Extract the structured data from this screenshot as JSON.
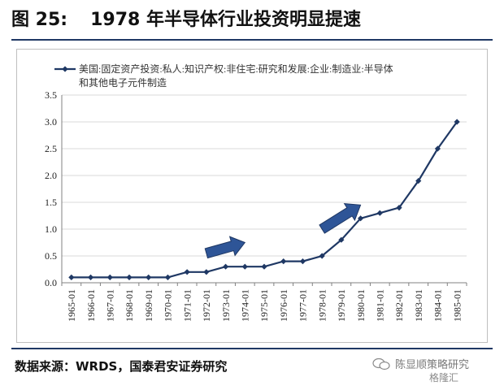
{
  "figure": {
    "number": "图 25:",
    "title": "1978 年半导体行业投资明显提速"
  },
  "source": "数据来源：WRDS，国泰君安证券研究",
  "watermark": {
    "author": "陈显顺策略研究",
    "brand": "格隆汇"
  },
  "colors": {
    "series": "#1f3864",
    "arrow": "#2e5597",
    "grid": "#d9d9d9",
    "rule": "#1f3864"
  },
  "chart_data": {
    "type": "line",
    "title": "",
    "xlabel": "",
    "ylabel": "",
    "ylim": [
      0,
      3.5
    ],
    "yticks": [
      "0.0",
      "0.5",
      "1.0",
      "1.5",
      "2.0",
      "2.5",
      "3.0",
      "3.5"
    ],
    "grid": "horizontal",
    "legend_position": "top",
    "x": [
      "1965-01",
      "1966-01",
      "1967-01",
      "1968-01",
      "1969-01",
      "1970-01",
      "1971-01",
      "1972-01",
      "1973-01",
      "1974-01",
      "1975-01",
      "1976-01",
      "1977-01",
      "1978-01",
      "1979-01",
      "1980-01",
      "1981-01",
      "1982-01",
      "1983-01",
      "1984-01",
      "1985-01"
    ],
    "series": [
      {
        "name": "美国:固定资产投资:私人:知识产权:非住宅:研究和发展:企业:制造业:半导体和其他电子元件制造",
        "legend_lines": [
          "美国:固定资产投资:私人:知识产权:非住宅:研究和发展:企业:制造业:半导体",
          "和其他电子元件制造"
        ],
        "values": [
          0.1,
          0.1,
          0.1,
          0.1,
          0.1,
          0.1,
          0.2,
          0.2,
          0.3,
          0.3,
          0.3,
          0.4,
          0.4,
          0.5,
          0.8,
          1.2,
          1.3,
          1.4,
          1.9,
          2.5,
          3.0
        ]
      }
    ],
    "annotations": [
      {
        "type": "arrow",
        "from": [
          "1972-01",
          0.55
        ],
        "to": [
          "1974-01",
          0.75
        ]
      },
      {
        "type": "arrow",
        "from": [
          "1978-01",
          1.0
        ],
        "to": [
          "1980-01",
          1.45
        ]
      }
    ]
  }
}
